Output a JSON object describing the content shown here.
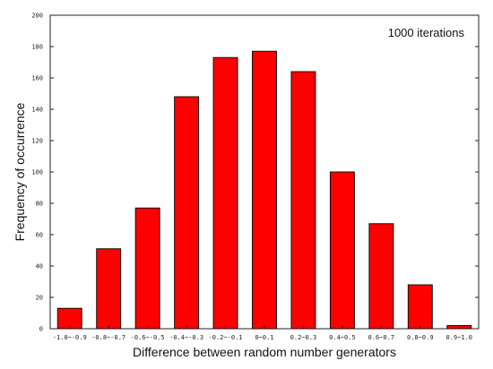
{
  "chart_data": {
    "type": "bar",
    "title": "",
    "annotation": "1000 iterations",
    "xlabel": "Difference between random number generators",
    "ylabel": "Frequency of occurrence",
    "categories": [
      "-1.0~-0.9",
      "-0.8~-0.7",
      "-0.6~-0.5",
      "-0.4~-0.3",
      "-0.2~-0.1",
      "0~0.1",
      "0.2~0.3",
      "0.4~0.5",
      "0.6~0.7",
      "0.8~0.9",
      "0.9~1.0"
    ],
    "values": [
      13,
      51,
      77,
      148,
      173,
      177,
      164,
      100,
      67,
      28,
      2
    ],
    "ylim": [
      0,
      200
    ],
    "yticks": [
      0,
      20,
      40,
      60,
      80,
      100,
      120,
      140,
      160,
      180,
      200
    ],
    "grid": false,
    "bar_color": "#ff0000",
    "bar_edge_color": "#111111"
  }
}
